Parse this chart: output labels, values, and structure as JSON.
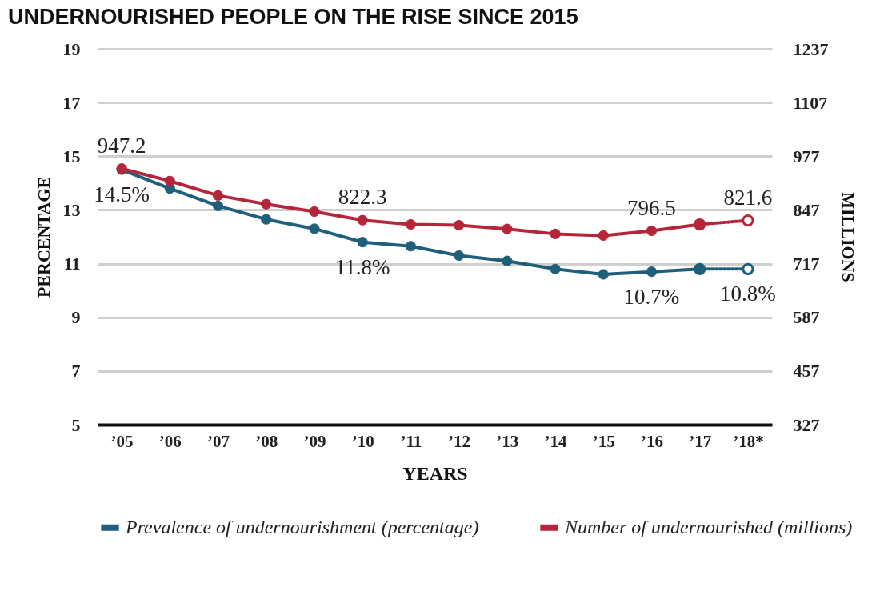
{
  "chart_data": {
    "type": "line",
    "title": "UNDERNOURISHED PEOPLE ON THE RISE SINCE 2015",
    "xlabel": "YEARS",
    "ylabel": "PERCENTAGE",
    "y2label": "MILLIONS",
    "categories": [
      "’05",
      "’06",
      "’07",
      "’08",
      "’09",
      "’10",
      "’11",
      "’12",
      "’13",
      "’14",
      "’15",
      "’16",
      "’17",
      "’18*"
    ],
    "ylim": [
      5,
      19
    ],
    "yticks": [
      5,
      7,
      9,
      11,
      13,
      15,
      17,
      19
    ],
    "y2lim": [
      327,
      1237
    ],
    "y2ticks": [
      327,
      457,
      587,
      717,
      847,
      977,
      1107,
      1237
    ],
    "grid": "y",
    "legend": "bottom",
    "marker": "circle",
    "series": [
      {
        "color": "#1f5f7a",
        "line_style": "dotted",
        "values": [
          null,
          null,
          null,
          null,
          null,
          null,
          null,
          null,
          null,
          null,
          null,
          null,
          10.8,
          10.8
        ],
        "value_labels": [
          null,
          null,
          null,
          null,
          null,
          null,
          null,
          null,
          null,
          null,
          null,
          null,
          null,
          "10.8%"
        ]
      },
      {
        "name": "Prevalence of undernourishment (percentage)",
        "color": "#1f5f7a",
        "line_style": "solid",
        "values": [
          14.5,
          13.8,
          13.15,
          12.65,
          12.3,
          11.8,
          11.65,
          11.3,
          11.1,
          10.8,
          10.6,
          10.7,
          10.8,
          null
        ],
        "value_labels": [
          "14.5%",
          null,
          null,
          null,
          null,
          "11.8%",
          null,
          null,
          null,
          null,
          null,
          "10.7%",
          null,
          null
        ]
      },
      {
        "color": "#b5263a",
        "axis": "y2",
        "line_style": "dotted",
        "values": [
          null,
          null,
          null,
          null,
          null,
          null,
          null,
          null,
          null,
          null,
          null,
          null,
          812,
          821.6
        ],
        "value_labels": [
          null,
          null,
          null,
          null,
          null,
          null,
          null,
          null,
          null,
          null,
          null,
          null,
          null,
          "821.6"
        ]
      },
      {
        "name": "Number of undernourished (millions)",
        "color": "#b5263a",
        "axis": "y2",
        "line_style": "solid",
        "values": [
          947.2,
          917,
          882,
          861,
          843,
          822.3,
          812,
          810,
          801,
          789,
          785,
          796.5,
          812,
          null
        ],
        "value_labels": [
          "947.2",
          null,
          null,
          null,
          null,
          "822.3",
          null,
          null,
          null,
          null,
          null,
          "796.5",
          null,
          null
        ]
      }
    ]
  }
}
